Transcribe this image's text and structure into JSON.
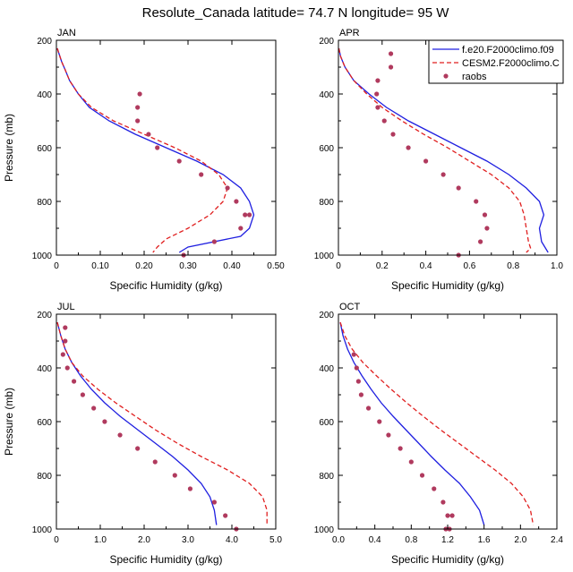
{
  "figure": {
    "title": "Resolute_Canada  latitude= 74.7 N longitude= 95 W"
  },
  "colors": {
    "model1": "#1f1fe0",
    "model2": "#e01f1f",
    "raobs": "#b03a5e"
  },
  "legend": {
    "placement": "top-right of APR panel",
    "entries": [
      "f.e20.F2000climo.f09",
      "CESM2.F2000climo.C",
      "raobs"
    ]
  },
  "chart_data": [
    {
      "type": "line",
      "title": "JAN",
      "xlabel": "Specific Humidity (g/kg)",
      "ylabel": "Pressure (mb)",
      "xlim": [
        0,
        0.5
      ],
      "xticks": [
        0,
        0.1,
        0.2,
        0.3,
        0.4,
        0.5
      ],
      "xticklabels": [
        "0",
        "0.10",
        "0.20",
        "0.30",
        "0.40",
        "0.50"
      ],
      "ylim": [
        1000,
        200
      ],
      "yticks": [
        1000,
        800,
        600,
        400,
        200
      ],
      "series": [
        {
          "name": "f.e20.F2000climo.f09",
          "style": "solid",
          "x": [
            0.002,
            0.006,
            0.012,
            0.02,
            0.03,
            0.05,
            0.075,
            0.12,
            0.18,
            0.25,
            0.32,
            0.38,
            0.42,
            0.44,
            0.45,
            0.44,
            0.42,
            0.3,
            0.28
          ],
          "y": [
            230,
            250,
            280,
            310,
            350,
            400,
            450,
            500,
            550,
            600,
            650,
            700,
            750,
            800,
            850,
            900,
            930,
            970,
            990
          ]
        },
        {
          "name": "CESM2.F2000climo.C",
          "style": "dashed",
          "x": [
            0.002,
            0.006,
            0.012,
            0.02,
            0.03,
            0.05,
            0.08,
            0.13,
            0.2,
            0.27,
            0.33,
            0.37,
            0.39,
            0.38,
            0.35,
            0.3,
            0.25,
            0.23,
            0.22
          ],
          "y": [
            230,
            250,
            280,
            310,
            350,
            400,
            450,
            500,
            550,
            600,
            650,
            700,
            750,
            800,
            850,
            900,
            940,
            970,
            990
          ]
        },
        {
          "name": "raobs",
          "style": "markers",
          "x": [
            0.19,
            0.185,
            0.185,
            0.21,
            0.23,
            0.28,
            0.33,
            0.39,
            0.41,
            0.43,
            0.44,
            0.42,
            0.36,
            0.29
          ],
          "y": [
            400,
            450,
            500,
            550,
            600,
            650,
            700,
            750,
            800,
            850,
            850,
            900,
            950,
            1000
          ]
        }
      ]
    },
    {
      "type": "line",
      "title": "APR",
      "xlabel": "Specific Humidity (g/kg)",
      "ylabel": "",
      "xlim": [
        0,
        1.0
      ],
      "xticks": [
        0,
        0.2,
        0.4,
        0.6,
        0.8,
        1.0
      ],
      "xticklabels": [
        "0",
        "0.2",
        "0.4",
        "0.6",
        "0.8",
        "1.0"
      ],
      "ylim": [
        1000,
        200
      ],
      "yticks": [
        1000,
        800,
        600,
        400,
        200
      ],
      "series": [
        {
          "name": "f.e20.F2000climo.f09",
          "style": "solid",
          "x": [
            0.002,
            0.01,
            0.03,
            0.07,
            0.14,
            0.22,
            0.32,
            0.44,
            0.56,
            0.68,
            0.78,
            0.86,
            0.92,
            0.94,
            0.92,
            0.93,
            0.96
          ],
          "y": [
            230,
            260,
            300,
            350,
            400,
            450,
            500,
            550,
            600,
            650,
            700,
            750,
            800,
            850,
            900,
            950,
            990
          ]
        },
        {
          "name": "CESM2.F2000climo.C",
          "style": "dashed",
          "x": [
            0.002,
            0.01,
            0.03,
            0.07,
            0.13,
            0.2,
            0.29,
            0.39,
            0.5,
            0.6,
            0.7,
            0.78,
            0.83,
            0.85,
            0.86,
            0.87,
            0.88,
            0.86
          ],
          "y": [
            230,
            260,
            300,
            350,
            400,
            450,
            500,
            550,
            600,
            650,
            700,
            750,
            800,
            850,
            900,
            950,
            975,
            990
          ]
        },
        {
          "name": "raobs",
          "style": "markers",
          "x": [
            0.24,
            0.24,
            0.18,
            0.175,
            0.18,
            0.21,
            0.25,
            0.32,
            0.4,
            0.48,
            0.55,
            0.63,
            0.67,
            0.68,
            0.65,
            0.55
          ],
          "y": [
            250,
            300,
            350,
            400,
            450,
            500,
            550,
            600,
            650,
            700,
            750,
            800,
            850,
            900,
            950,
            1000
          ]
        }
      ]
    },
    {
      "type": "line",
      "title": "JUL",
      "xlabel": "Specific Humidity (g/kg)",
      "ylabel": "Pressure (mb)",
      "xlim": [
        0,
        5.0
      ],
      "xticks": [
        0,
        1,
        2,
        3,
        4,
        5
      ],
      "xticklabels": [
        "0",
        "1.0",
        "2.0",
        "3.0",
        "4.0",
        "5.0"
      ],
      "ylim": [
        1000,
        200
      ],
      "yticks": [
        1000,
        800,
        600,
        400,
        200
      ],
      "series": [
        {
          "name": "f.e20.F2000climo.f09",
          "style": "solid",
          "x": [
            0.02,
            0.1,
            0.2,
            0.35,
            0.55,
            0.8,
            1.1,
            1.45,
            1.85,
            2.25,
            2.65,
            3.0,
            3.3,
            3.5,
            3.6,
            3.65
          ],
          "y": [
            230,
            280,
            330,
            380,
            430,
            480,
            530,
            580,
            630,
            680,
            730,
            780,
            830,
            880,
            930,
            985
          ]
        },
        {
          "name": "CESM2.F2000climo.C",
          "style": "dashed",
          "x": [
            0.02,
            0.1,
            0.2,
            0.35,
            0.6,
            0.95,
            1.35,
            1.8,
            2.25,
            2.75,
            3.3,
            3.9,
            4.4,
            4.7,
            4.8,
            4.8
          ],
          "y": [
            230,
            280,
            330,
            380,
            430,
            480,
            530,
            580,
            630,
            680,
            730,
            780,
            830,
            880,
            930,
            985
          ]
        },
        {
          "name": "raobs",
          "style": "markers",
          "x": [
            0.2,
            0.2,
            0.15,
            0.25,
            0.4,
            0.6,
            0.85,
            1.1,
            1.45,
            1.85,
            2.25,
            2.7,
            3.05,
            3.6,
            3.85,
            4.1
          ],
          "y": [
            250,
            300,
            350,
            400,
            450,
            500,
            550,
            600,
            650,
            700,
            750,
            800,
            850,
            900,
            950,
            1000
          ]
        }
      ]
    },
    {
      "type": "line",
      "title": "OCT",
      "xlabel": "Specific Humidity (g/kg)",
      "ylabel": "",
      "xlim": [
        0,
        2.4
      ],
      "xticks": [
        0,
        0.4,
        0.8,
        1.2,
        1.6,
        2.0,
        2.4
      ],
      "xticklabels": [
        "0.0",
        "0.4",
        "0.8",
        "1.2",
        "1.6",
        "2.0",
        "2.4"
      ],
      "ylim": [
        1000,
        200
      ],
      "yticks": [
        1000,
        800,
        600,
        400,
        200
      ],
      "series": [
        {
          "name": "f.e20.F2000climo.f09",
          "style": "solid",
          "x": [
            0.02,
            0.05,
            0.1,
            0.17,
            0.26,
            0.36,
            0.47,
            0.6,
            0.74,
            0.88,
            1.02,
            1.17,
            1.33,
            1.45,
            1.55,
            1.6
          ],
          "y": [
            230,
            280,
            330,
            380,
            430,
            480,
            530,
            580,
            630,
            680,
            730,
            780,
            830,
            880,
            930,
            985
          ]
        },
        {
          "name": "CESM2.F2000climo.C",
          "style": "dashed",
          "x": [
            0.02,
            0.07,
            0.15,
            0.27,
            0.42,
            0.58,
            0.75,
            0.93,
            1.12,
            1.32,
            1.52,
            1.72,
            1.9,
            2.03,
            2.11,
            2.14
          ],
          "y": [
            230,
            280,
            330,
            380,
            430,
            480,
            530,
            580,
            630,
            680,
            730,
            780,
            830,
            880,
            930,
            985
          ]
        },
        {
          "name": "raobs",
          "style": "markers",
          "x": [
            0.17,
            0.2,
            0.22,
            0.25,
            0.33,
            0.45,
            0.55,
            0.68,
            0.8,
            0.92,
            1.05,
            1.15,
            1.2,
            1.25,
            1.22,
            1.18
          ],
          "y": [
            350,
            400,
            450,
            500,
            550,
            600,
            650,
            700,
            750,
            800,
            850,
            900,
            950,
            950,
            1000,
            1000
          ]
        }
      ]
    }
  ]
}
